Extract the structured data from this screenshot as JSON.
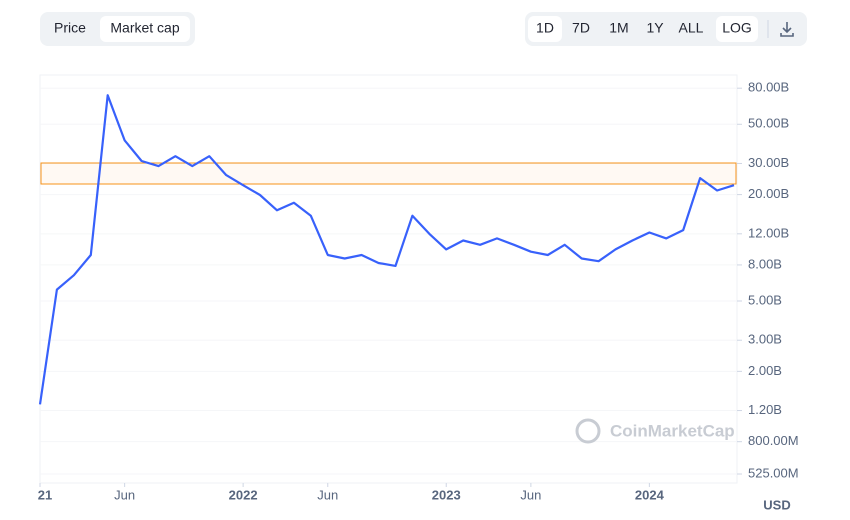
{
  "controls": {
    "tabs": [
      "Price",
      "Market cap"
    ],
    "ranges": [
      "1D",
      "7D",
      "1M",
      "1Y",
      "ALL",
      "LOG"
    ]
  },
  "chart_data": {
    "type": "line",
    "log_scale": true,
    "grid": true,
    "color": "#3861fb",
    "watermark": "CoinMarketCap",
    "currency_label": "USD",
    "x": [
      "2021-01",
      "2021-02",
      "2021-03",
      "2021-04",
      "2021-05",
      "2021-06",
      "2021-07",
      "2021-08",
      "2021-09",
      "2021-10",
      "2021-11",
      "2021-12",
      "2022-01",
      "2022-02",
      "2022-03",
      "2022-04",
      "2022-05",
      "2022-06",
      "2022-07",
      "2022-08",
      "2022-09",
      "2022-10",
      "2022-11",
      "2022-12",
      "2023-01",
      "2023-02",
      "2023-03",
      "2023-04",
      "2023-05",
      "2023-06",
      "2023-07",
      "2023-08",
      "2023-09",
      "2023-10",
      "2023-11",
      "2023-12",
      "2024-01",
      "2024-02",
      "2024-03",
      "2024-04",
      "2024-05",
      "2024-06"
    ],
    "values": [
      1300000000,
      5800000000,
      7000000000,
      9100000000,
      73000000000,
      40600000000,
      31000000000,
      29000000000,
      33000000000,
      29000000000,
      33000000000,
      25800000000,
      22600000000,
      19900000000,
      16300000000,
      18000000000,
      15200000000,
      9100000000,
      8700000000,
      9100000000,
      8200000000,
      7900000000,
      15200000000,
      12000000000,
      9800000000,
      11000000000,
      10400000000,
      11300000000,
      10400000000,
      9500000000,
      9100000000,
      10400000000,
      8700000000,
      8400000000,
      9800000000,
      11000000000,
      12200000000,
      11300000000,
      12600000000,
      24800000000,
      21100000000,
      22600000000
    ],
    "xlim": [
      "2021-01",
      "2024-06"
    ],
    "xticks": [
      {
        "value": "2021-01",
        "label": "21"
      },
      {
        "value": "2021-06",
        "label": "Jun"
      },
      {
        "value": "2022-01",
        "label": "2022"
      },
      {
        "value": "2022-06",
        "label": "Jun"
      },
      {
        "value": "2023-01",
        "label": "2023"
      },
      {
        "value": "2023-06",
        "label": "Jun"
      },
      {
        "value": "2024-01",
        "label": "2024"
      }
    ],
    "ylim": [
      467000000,
      95000000000
    ],
    "yticks": [
      {
        "value": 80000000000,
        "label": "80.00B"
      },
      {
        "value": 50000000000,
        "label": "50.00B"
      },
      {
        "value": 30000000000,
        "label": "30.00B"
      },
      {
        "value": 20000000000,
        "label": "20.00B"
      },
      {
        "value": 12000000000,
        "label": "12.00B"
      },
      {
        "value": 8000000000,
        "label": "8.00B"
      },
      {
        "value": 5000000000,
        "label": "5.00B"
      },
      {
        "value": 3000000000,
        "label": "3.00B"
      },
      {
        "value": 2000000000,
        "label": "2.00B"
      },
      {
        "value": 1200000000,
        "label": "1.20B"
      },
      {
        "value": 800000000,
        "label": "800.00M"
      },
      {
        "value": 525000000,
        "label": "525.00M"
      }
    ]
  }
}
